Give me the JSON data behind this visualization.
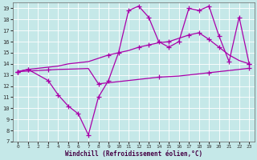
{
  "xlabel": "Windchill (Refroidissement éolien,°C)",
  "xlim": [
    -0.5,
    23.5
  ],
  "ylim": [
    7,
    19.5
  ],
  "xticks": [
    0,
    1,
    2,
    3,
    4,
    5,
    6,
    7,
    8,
    9,
    10,
    11,
    12,
    13,
    14,
    15,
    16,
    17,
    18,
    19,
    20,
    21,
    22,
    23
  ],
  "yticks": [
    7,
    8,
    9,
    10,
    11,
    12,
    13,
    14,
    15,
    16,
    17,
    18,
    19
  ],
  "bg_color": "#c5e8e8",
  "line_color": "#aa00aa",
  "grid_color": "#ffffff",
  "line1_x": [
    0,
    1,
    3,
    4,
    5,
    6,
    7,
    8,
    9,
    10,
    11,
    12,
    13,
    14,
    15,
    16,
    17,
    18,
    19,
    20,
    21,
    22,
    23
  ],
  "line1_y": [
    13.3,
    13.5,
    12.5,
    11.2,
    10.2,
    9.5,
    7.6,
    11.0,
    12.5,
    15.0,
    18.8,
    19.2,
    18.2,
    16.0,
    15.5,
    16.0,
    19.0,
    18.8,
    19.2,
    16.5,
    14.2,
    18.2,
    14.0
  ],
  "line2_x": [
    0,
    1,
    9,
    12,
    13,
    15,
    17,
    18,
    19,
    20,
    23
  ],
  "line2_y": [
    13.3,
    13.5,
    14.8,
    15.5,
    15.7,
    16.0,
    16.6,
    16.8,
    16.2,
    15.5,
    14.0
  ],
  "line2_all_x": [
    0,
    1,
    2,
    3,
    4,
    5,
    6,
    7,
    8,
    9,
    10,
    11,
    12,
    13,
    14,
    15,
    16,
    17,
    18,
    19,
    20,
    21,
    22,
    23
  ],
  "line2_all_y": [
    13.3,
    13.5,
    13.6,
    13.7,
    13.8,
    14.0,
    14.1,
    14.2,
    14.5,
    14.8,
    15.0,
    15.2,
    15.5,
    15.7,
    15.9,
    16.0,
    16.3,
    16.6,
    16.8,
    16.2,
    15.5,
    14.8,
    14.3,
    14.0
  ],
  "line3_x": [
    0,
    3,
    8,
    14,
    19,
    23
  ],
  "line3_y": [
    13.3,
    13.45,
    12.2,
    12.8,
    13.2,
    13.6
  ],
  "line3_all_x": [
    0,
    1,
    2,
    3,
    4,
    5,
    6,
    7,
    8,
    9,
    10,
    11,
    12,
    13,
    14,
    15,
    16,
    17,
    18,
    19,
    20,
    21,
    22,
    23
  ],
  "line3_all_y": [
    13.3,
    13.35,
    13.4,
    13.45,
    13.5,
    13.52,
    13.55,
    13.58,
    12.2,
    12.3,
    12.4,
    12.5,
    12.6,
    12.7,
    12.8,
    12.85,
    12.9,
    13.0,
    13.1,
    13.2,
    13.3,
    13.4,
    13.5,
    13.6
  ]
}
